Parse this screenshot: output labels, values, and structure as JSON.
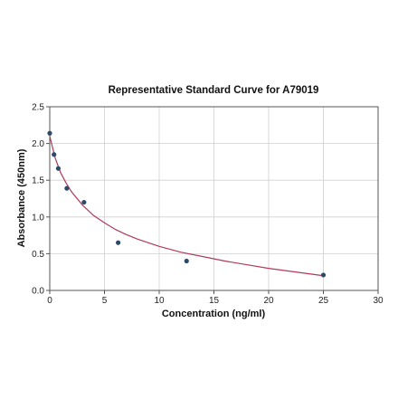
{
  "chart_data": {
    "type": "scatter",
    "title": "Representative Standard Curve for A79019",
    "xlabel": "Concentration (ng/ml)",
    "ylabel": "Absorbance (450nm)",
    "xlim": [
      0,
      30
    ],
    "ylim": [
      0,
      2.5
    ],
    "xticks": [
      0,
      5,
      10,
      15,
      20,
      25,
      30
    ],
    "yticks": [
      0.0,
      0.5,
      1.0,
      1.5,
      2.0,
      2.5
    ],
    "xtick_labels": [
      "0",
      "5",
      "10",
      "15",
      "20",
      "25",
      "30"
    ],
    "ytick_labels": [
      "0.0",
      "0.5",
      "1.0",
      "1.5",
      "2.0",
      "2.5"
    ],
    "grid": true,
    "series": [
      {
        "points": [
          {
            "x": 0,
            "y": 2.14
          },
          {
            "x": 0.39,
            "y": 1.85
          },
          {
            "x": 0.78,
            "y": 1.66
          },
          {
            "x": 1.56,
            "y": 1.39
          },
          {
            "x": 3.13,
            "y": 1.2
          },
          {
            "x": 6.25,
            "y": 0.65
          },
          {
            "x": 12.5,
            "y": 0.4
          },
          {
            "x": 25,
            "y": 0.21
          }
        ],
        "marker_color": "#2e4a6b",
        "curve_color": "#b03a5a",
        "curve": [
          {
            "x": 0,
            "y": 2.1
          },
          {
            "x": 0.5,
            "y": 1.8
          },
          {
            "x": 1,
            "y": 1.6
          },
          {
            "x": 1.5,
            "y": 1.46
          },
          {
            "x": 2,
            "y": 1.34
          },
          {
            "x": 3,
            "y": 1.16
          },
          {
            "x": 4,
            "y": 1.02
          },
          {
            "x": 5,
            "y": 0.92
          },
          {
            "x": 6,
            "y": 0.83
          },
          {
            "x": 7,
            "y": 0.76
          },
          {
            "x": 8,
            "y": 0.7
          },
          {
            "x": 10,
            "y": 0.6
          },
          {
            "x": 12,
            "y": 0.52
          },
          {
            "x": 14,
            "y": 0.46
          },
          {
            "x": 16,
            "y": 0.4
          },
          {
            "x": 18,
            "y": 0.35
          },
          {
            "x": 20,
            "y": 0.3
          },
          {
            "x": 22,
            "y": 0.26
          },
          {
            "x": 24,
            "y": 0.22
          },
          {
            "x": 25,
            "y": 0.2
          }
        ]
      }
    ]
  },
  "colors": {
    "grid": "#d0d0d0",
    "frame": "#555555",
    "marker": "#2e4a6b",
    "curve": "#b03a5a"
  }
}
